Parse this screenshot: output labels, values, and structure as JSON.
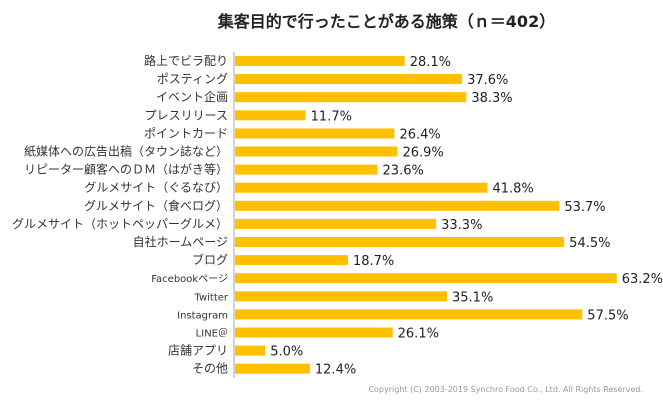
{
  "chart_data": {
    "type": "bar",
    "orientation": "horizontal",
    "title": "集客目的で行ったことがある施策（ｎ＝402）",
    "categories": [
      "路上でビラ配り",
      "ポスティング",
      "イベント企画",
      "プレスリリース",
      "ポイントカード",
      "紙媒体への広告出稿（タウン誌など）",
      "リピーター顧客へのＤＭ（はがき等）",
      "グルメサイト（ぐるなび）",
      "グルメサイト（食べログ）",
      "グルメサイト（ホットペッパーグルメ）",
      "自社ホームページ",
      "ブログ",
      "Facebookページ",
      "Twitter",
      "Instagram",
      "LINE＠",
      "店舗アプリ",
      "その他"
    ],
    "values": [
      28.1,
      37.6,
      38.3,
      11.7,
      26.4,
      26.9,
      23.6,
      41.8,
      53.7,
      33.3,
      54.5,
      18.7,
      63.2,
      35.1,
      57.5,
      26.1,
      5.0,
      12.4
    ],
    "value_suffix": "%",
    "bar_color": "#FFC000",
    "grid": false,
    "legend": "none"
  },
  "footer": {
    "copyright": "Copyright (C) 2003-2019  Synchro Food Co., Ltd. All Rights Reserved."
  }
}
